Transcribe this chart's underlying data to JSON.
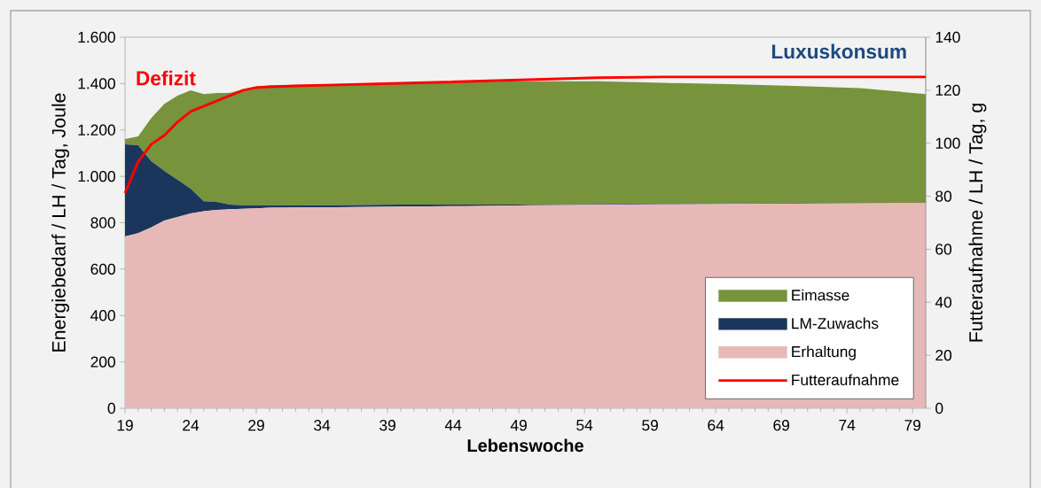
{
  "chart_data": {
    "type": "area",
    "stacked": true,
    "xlabel": "Lebenswoche",
    "ylabel": "Energiebedarf / LH / Tag, Joule",
    "y2label": "Futteraufnahme / LH / Tag, g",
    "x": [
      19,
      20,
      21,
      22,
      23,
      24,
      25,
      26,
      27,
      28,
      29,
      30,
      32,
      35,
      40,
      45,
      50,
      55,
      60,
      65,
      70,
      75,
      80
    ],
    "xlim": [
      19,
      80
    ],
    "xticks": [
      19,
      24,
      29,
      34,
      39,
      44,
      49,
      54,
      59,
      64,
      69,
      74,
      79
    ],
    "ylim": [
      0,
      1600
    ],
    "yticks": [
      0,
      200,
      400,
      600,
      800,
      {
        "value": 1000,
        "label": "1.000"
      },
      {
        "value": 1200,
        "label": "1.200"
      },
      {
        "value": 1400,
        "label": "1.400"
      },
      {
        "value": 1600,
        "label": "1.600"
      }
    ],
    "y2lim": [
      0,
      140
    ],
    "y2ticks": [
      0,
      20,
      40,
      60,
      80,
      100,
      120,
      140
    ],
    "legend": "bottom right",
    "marker": "none",
    "line_style": "solid",
    "annotations": [
      "Defizit",
      "Luxuskonsum"
    ],
    "series": [
      {
        "name": "Erhaltung",
        "color": "#e6b9b8",
        "values": [
          741,
          755,
          780,
          810,
          825,
          840,
          850,
          855,
          858,
          860,
          862,
          865,
          866,
          867,
          870,
          872,
          875,
          877,
          879,
          881,
          882,
          884,
          885
        ]
      },
      {
        "name": "LM-Zuwachs",
        "color": "#1b365d",
        "values": [
          397,
          379,
          285,
          213,
          160,
          107,
          43,
          35,
          20,
          15,
          12,
          10,
          8,
          8,
          8,
          6,
          3,
          3,
          2,
          2,
          2,
          2,
          1
        ]
      },
      {
        "name": "Eimasse",
        "color": "#77933c",
        "values": [
          23,
          38,
          187,
          290,
          363,
          424,
          462,
          469,
          482,
          500,
          514,
          517,
          521,
          522,
          524,
          529,
          532,
          530,
          522,
          515,
          506,
          494,
          469
        ]
      },
      {
        "name": "Futteraufnahme",
        "type": "line",
        "axis": "y2",
        "color": "#ff0000",
        "values": [
          81.2,
          93,
          99.6,
          103,
          108,
          112,
          114,
          116,
          118,
          120,
          121,
          121.3,
          121.6,
          122,
          122.6,
          123.3,
          124,
          124.7,
          125,
          125,
          125,
          125,
          125
        ]
      }
    ]
  }
}
